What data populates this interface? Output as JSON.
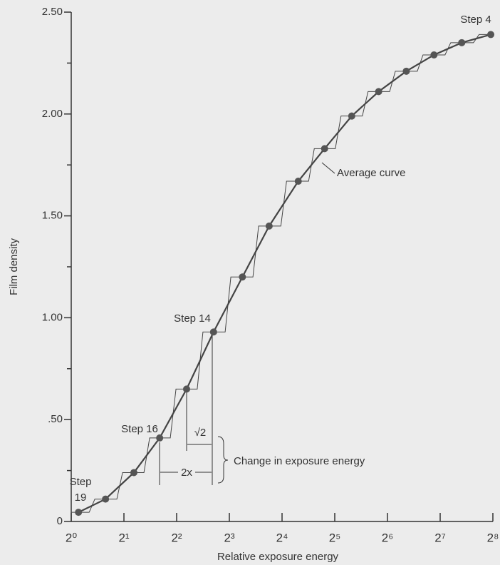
{
  "chart_data": {
    "type": "line",
    "x_label": "Relative exposure energy",
    "y_label": "Film density",
    "xlog": true,
    "xlim": [
      1,
      256
    ],
    "xticks": [
      {
        "value": 1,
        "label": "2⁰"
      },
      {
        "value": 2,
        "label": "2¹"
      },
      {
        "value": 4,
        "label": "2²"
      },
      {
        "value": 8,
        "label": "2³"
      },
      {
        "value": 16,
        "label": "2⁴"
      },
      {
        "value": 32,
        "label": "2⁵"
      },
      {
        "value": 64,
        "label": "2⁶"
      },
      {
        "value": 128,
        "label": "2⁷"
      },
      {
        "value": 256,
        "label": "2⁸"
      }
    ],
    "ylim": [
      0,
      2.5
    ],
    "yticks": [
      0,
      {
        "value": 0.5,
        "label": ".50"
      },
      {
        "value": 1,
        "label": "1.00"
      },
      {
        "value": 1.5,
        "label": "1.50"
      },
      {
        "value": 2,
        "label": "2.00"
      },
      {
        "value": 2.5,
        "label": "2.50"
      }
    ],
    "yminor_ticks": [
      0.25,
      0.75,
      1.25,
      1.75,
      2.25
    ],
    "x": [
      1.1,
      1.57,
      2.28,
      3.2,
      4.56,
      6.5,
      9.5,
      13.5,
      19.8,
      28,
      40,
      57,
      82,
      118,
      170,
      249
    ],
    "series": [
      {
        "name": "Average curve",
        "color": "#444444",
        "values": [
          0.045,
          0.11,
          0.24,
          0.41,
          0.65,
          0.93,
          1.2,
          1.45,
          1.67,
          1.83,
          1.99,
          2.11,
          2.21,
          2.29,
          2.35,
          2.39
        ]
      }
    ],
    "annotations": [
      "Step 4",
      "Step 14",
      "Step 16",
      "Step",
      "19",
      "Change in exposure energy",
      "2x",
      "√2"
    ]
  }
}
